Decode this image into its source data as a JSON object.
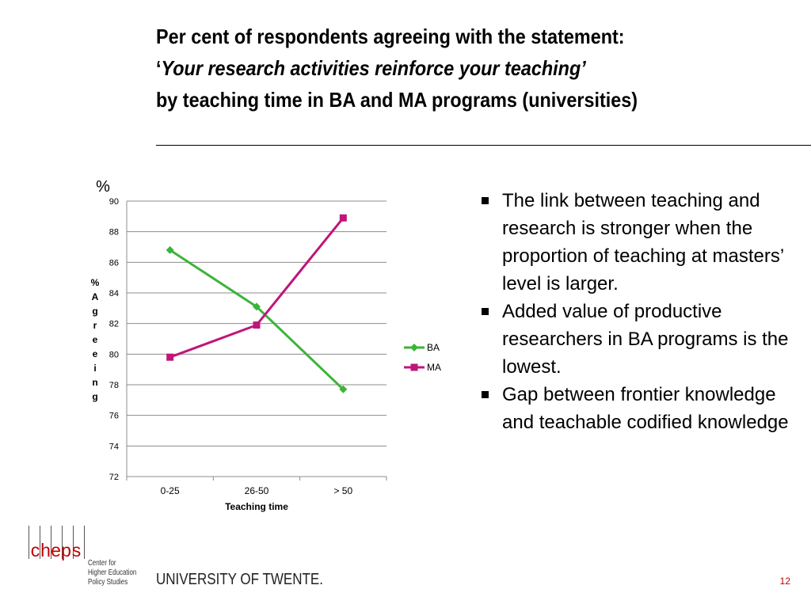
{
  "slide": {
    "title_line1": "Per cent of respondents agreeing with the statement:",
    "title_line2_open": "‘",
    "title_line2_italic": "Your research activities reinforce your teaching",
    "title_line2_close": "’",
    "title_line3": "by teaching time in BA and MA programs (universities)",
    "bullets": [
      "The link between teaching and research is stronger when the proportion of teaching at masters’ level is larger.",
      "Added value of productive researchers in BA programs is the lowest.",
      "Gap between frontier knowledge and teachable codified knowledge"
    ],
    "page_number": "12",
    "university": "UNIVERSITY OF TWENTE."
  },
  "logo": {
    "letters": [
      "c",
      "h",
      "e",
      "p",
      "s"
    ],
    "text_lines": [
      "Center for",
      "Higher Education",
      "Policy Studies"
    ]
  },
  "chart_data": {
    "type": "line",
    "categories": [
      "0-25",
      "26-50",
      "> 50"
    ],
    "series": [
      {
        "name": "BA",
        "values": [
          86.8,
          83.1,
          77.7
        ],
        "color": "#3db33a",
        "marker": "diamond"
      },
      {
        "name": "MA",
        "values": [
          79.8,
          81.9,
          88.9
        ],
        "color": "#c0157a",
        "marker": "square"
      }
    ],
    "unit": "%",
    "xlabel": "Teaching time",
    "ylabel": "% Agreeing",
    "ylabel_chars": [
      "%",
      "A",
      "g",
      "r",
      "e",
      "e",
      "i",
      "n",
      "g"
    ],
    "ylim": [
      72,
      90
    ],
    "yticks": [
      72,
      74,
      76,
      78,
      80,
      82,
      84,
      86,
      88,
      90
    ],
    "grid": true,
    "legend_position": "right"
  }
}
